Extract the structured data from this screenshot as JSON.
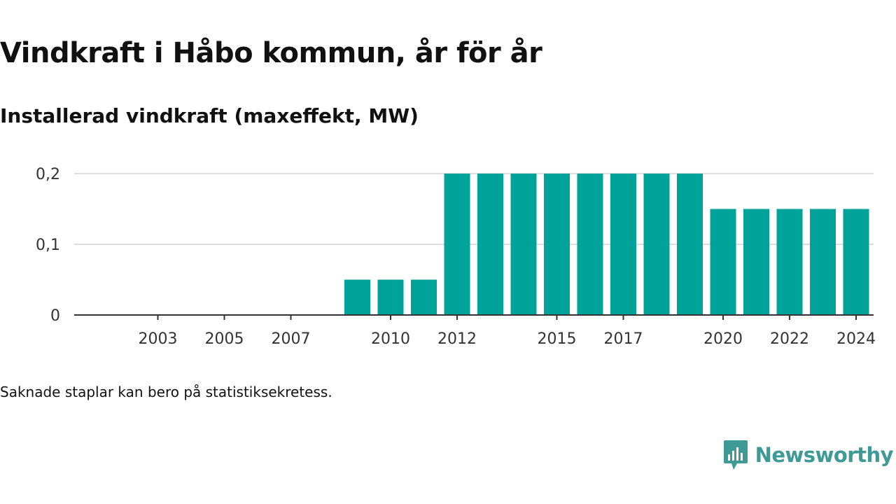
{
  "title": "Vindkraft i Håbo kommun, år för år",
  "subtitle": "Installerad vindkraft (maxeffekt, MW)",
  "footnote": "Saknade staplar kan bero på statistiksekretess.",
  "brand": {
    "name": "Newsworthy",
    "icon": "newsworthy-chart-bubble-icon"
  },
  "colors": {
    "bar": "#00a39a",
    "brand": "#3d9a95",
    "text": "#111111",
    "axis_text": "#333333",
    "grid": "#dddddd"
  },
  "chart_data": {
    "type": "bar",
    "title": "Vindkraft i Håbo kommun, år för år",
    "ylabel": "Installerad vindkraft (maxeffekt, MW)",
    "xlabel": "",
    "categories": [
      "2002",
      "2003",
      "2004",
      "2005",
      "2006",
      "2007",
      "2008",
      "2009",
      "2010",
      "2011",
      "2012",
      "2013",
      "2014",
      "2015",
      "2016",
      "2017",
      "2018",
      "2019",
      "2020",
      "2021",
      "2022",
      "2023",
      "2024"
    ],
    "values": [
      null,
      null,
      null,
      null,
      null,
      null,
      null,
      0.05,
      0.05,
      0.05,
      0.2,
      0.2,
      0.2,
      0.2,
      0.2,
      0.2,
      0.2,
      0.2,
      0.15,
      0.15,
      0.15,
      0.15,
      0.15
    ],
    "x_tick_labels": [
      "2003",
      "2005",
      "2007",
      "2010",
      "2012",
      "2015",
      "2017",
      "2020",
      "2022",
      "2024"
    ],
    "y_ticks": [
      {
        "value": 0,
        "label": "0"
      },
      {
        "value": 0.1,
        "label": "0,1"
      },
      {
        "value": 0.2,
        "label": "0,2"
      }
    ],
    "ylim": [
      0,
      0.2
    ],
    "grid": true,
    "legend": "none"
  }
}
